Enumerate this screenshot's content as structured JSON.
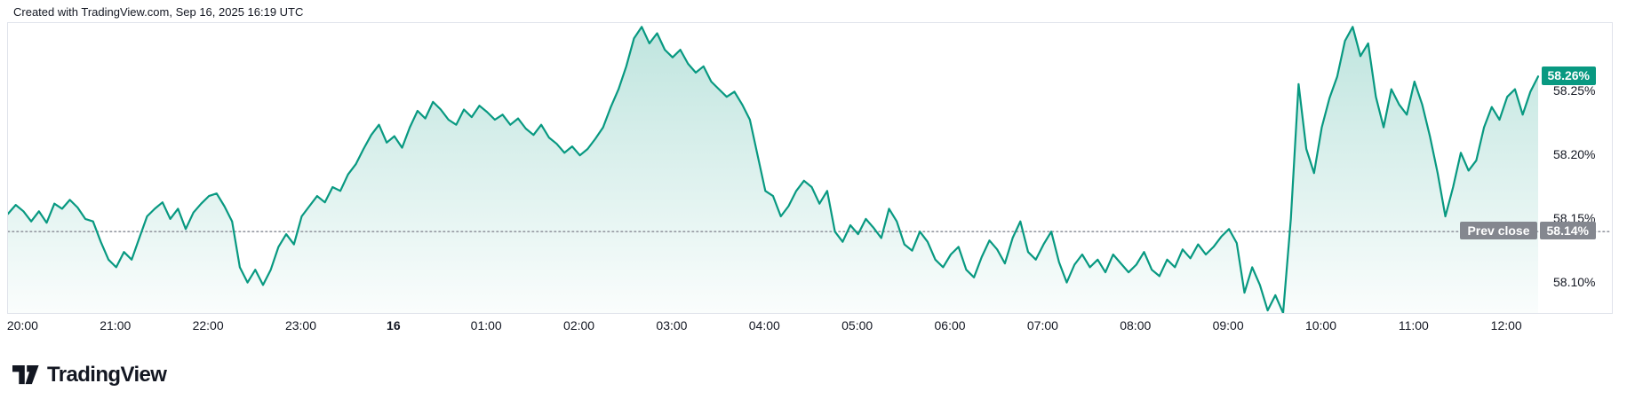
{
  "header": {
    "title": "Created with TradingView.com, Sep 16, 2025 16:19 UTC"
  },
  "footer": {
    "brand": "TradingView"
  },
  "colors": {
    "line": "#089981",
    "fill_top": "rgba(8,153,129,0.26)",
    "fill_bottom": "rgba(8,153,129,0.02)",
    "current_badge_bg": "#089981",
    "prev_close_badge_bg": "#84878f",
    "dotted_line": "#9598a1",
    "axis_text": "#131722",
    "frame_border": "#e0e3eb"
  },
  "chart_data": {
    "type": "area",
    "title": "Created with TradingView.com, Sep 16, 2025 16:19 UTC",
    "xlabel": "",
    "ylabel": "",
    "interval_minutes": 5,
    "x_start_label": "19:50",
    "x_end_label": "12:20",
    "ylim": [
      58.076,
      58.304
    ],
    "grid": "off",
    "legend": "none",
    "x_ticks": [
      {
        "label": "20:00",
        "t_min": 10,
        "bold": false
      },
      {
        "label": "21:00",
        "t_min": 70,
        "bold": false
      },
      {
        "label": "22:00",
        "t_min": 130,
        "bold": false
      },
      {
        "label": "23:00",
        "t_min": 190,
        "bold": false
      },
      {
        "label": "16",
        "t_min": 250,
        "bold": true
      },
      {
        "label": "01:00",
        "t_min": 310,
        "bold": false
      },
      {
        "label": "02:00",
        "t_min": 370,
        "bold": false
      },
      {
        "label": "03:00",
        "t_min": 430,
        "bold": false
      },
      {
        "label": "04:00",
        "t_min": 490,
        "bold": false
      },
      {
        "label": "05:00",
        "t_min": 550,
        "bold": false
      },
      {
        "label": "06:00",
        "t_min": 610,
        "bold": false
      },
      {
        "label": "07:00",
        "t_min": 670,
        "bold": false
      },
      {
        "label": "08:00",
        "t_min": 730,
        "bold": false
      },
      {
        "label": "09:00",
        "t_min": 790,
        "bold": false
      },
      {
        "label": "10:00",
        "t_min": 850,
        "bold": false
      },
      {
        "label": "11:00",
        "t_min": 910,
        "bold": false
      },
      {
        "label": "12:00",
        "t_min": 970,
        "bold": false
      }
    ],
    "y_ticks": [
      {
        "label": "58.25%",
        "value": 58.25
      },
      {
        "label": "58.20%",
        "value": 58.2
      },
      {
        "label": "58.15%",
        "value": 58.15
      },
      {
        "label": "58.10%",
        "value": 58.1
      }
    ],
    "prev_close": {
      "label": "Prev close",
      "value_label": "58.14%",
      "value": 58.14
    },
    "current": {
      "value_label": "58.26%",
      "value": 58.262
    },
    "series": [
      {
        "name": "value-percent",
        "values": [
          58.154,
          58.161,
          58.156,
          58.148,
          58.156,
          58.147,
          58.162,
          58.158,
          58.165,
          58.159,
          58.15,
          58.148,
          58.132,
          58.118,
          58.112,
          58.124,
          58.118,
          58.135,
          58.152,
          58.158,
          58.163,
          58.15,
          58.158,
          58.142,
          58.155,
          58.162,
          58.168,
          58.17,
          58.16,
          58.148,
          58.112,
          58.1,
          58.11,
          58.098,
          58.11,
          58.128,
          58.138,
          58.13,
          58.152,
          58.16,
          58.168,
          58.163,
          58.175,
          58.172,
          58.185,
          58.193,
          58.205,
          58.216,
          58.224,
          58.21,
          58.215,
          58.206,
          58.222,
          58.235,
          58.229,
          58.242,
          58.236,
          58.228,
          58.224,
          58.236,
          58.23,
          58.239,
          58.234,
          58.228,
          58.232,
          58.224,
          58.229,
          58.221,
          58.216,
          58.224,
          58.214,
          58.209,
          58.202,
          58.207,
          58.2,
          58.205,
          58.213,
          58.222,
          58.238,
          58.252,
          58.27,
          58.292,
          58.301,
          58.288,
          58.296,
          58.283,
          58.277,
          58.283,
          58.272,
          58.265,
          58.27,
          58.258,
          58.252,
          58.246,
          58.25,
          58.24,
          58.228,
          58.2,
          58.172,
          58.168,
          58.152,
          58.16,
          58.172,
          58.18,
          58.175,
          58.162,
          58.172,
          58.14,
          58.132,
          58.145,
          58.138,
          58.15,
          58.143,
          58.135,
          58.158,
          58.148,
          58.13,
          58.125,
          58.14,
          58.132,
          58.118,
          58.112,
          58.122,
          58.128,
          58.11,
          58.104,
          58.12,
          58.133,
          58.126,
          58.115,
          58.135,
          58.148,
          58.124,
          58.118,
          58.13,
          58.14,
          58.116,
          58.1,
          58.114,
          58.122,
          58.112,
          58.118,
          58.108,
          58.122,
          58.115,
          58.108,
          58.114,
          58.124,
          58.11,
          58.105,
          58.118,
          58.112,
          58.126,
          58.119,
          58.13,
          58.122,
          58.128,
          58.136,
          58.142,
          58.131,
          58.092,
          58.112,
          58.098,
          58.078,
          58.09,
          58.076,
          58.15,
          58.256,
          58.205,
          58.186,
          58.222,
          58.245,
          58.262,
          58.29,
          58.301,
          58.278,
          58.288,
          58.246,
          58.222,
          58.252,
          58.24,
          58.232,
          58.258,
          58.24,
          58.215,
          58.186,
          58.152,
          58.175,
          58.202,
          58.188,
          58.196,
          58.222,
          58.238,
          58.228,
          58.246,
          58.252,
          58.232,
          58.25,
          58.262
        ]
      }
    ]
  }
}
